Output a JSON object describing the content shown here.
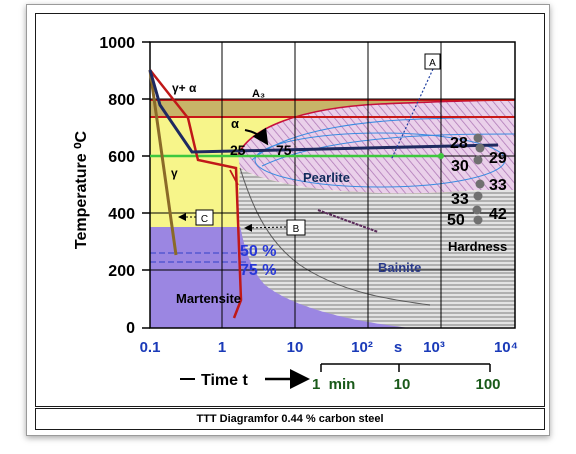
{
  "caption": "TTT Diagramfor 0.44 % carbon steel",
  "axes": {
    "y_label": "Temperature ⁰C",
    "y_ticks": [
      "1000",
      "800",
      "600",
      "400",
      "200",
      "0"
    ],
    "x_ticks": [
      "0.1",
      "1",
      "10",
      "10²",
      "10³",
      "10⁴"
    ],
    "x_unit": "s",
    "x_label": "Time t",
    "minute_ticks": [
      "1  min",
      "10",
      "100"
    ]
  },
  "regions": {
    "gamma_alpha": "γ+ α",
    "a3": "A₃",
    "alpha": "α",
    "gamma": "γ",
    "pearlite": "Pearlite",
    "bainite": "Bainite",
    "martensite": "Martensite",
    "pct_25": "25",
    "pct_75": "75",
    "ms_50": "50 %",
    "ms_75": "75 %"
  },
  "hardness": {
    "title": "Hardness",
    "values": [
      "28",
      "29",
      "30",
      "33",
      "33",
      "42",
      "50"
    ]
  },
  "callouts": {
    "a": "A",
    "b": "B",
    "c": "C"
  },
  "colors": {
    "austenite_zone": "#f7f58a",
    "martensite_zone": "#9b86e2",
    "pearlite_zone": "#e6bde6",
    "bainite_zone": "#9a9a9a",
    "a3_band": "#c8b468",
    "curve_a": "#1f2a60",
    "curve_b": "#c01818",
    "curve_c": "#8a6a28",
    "green_line": "#3ec83e"
  }
}
